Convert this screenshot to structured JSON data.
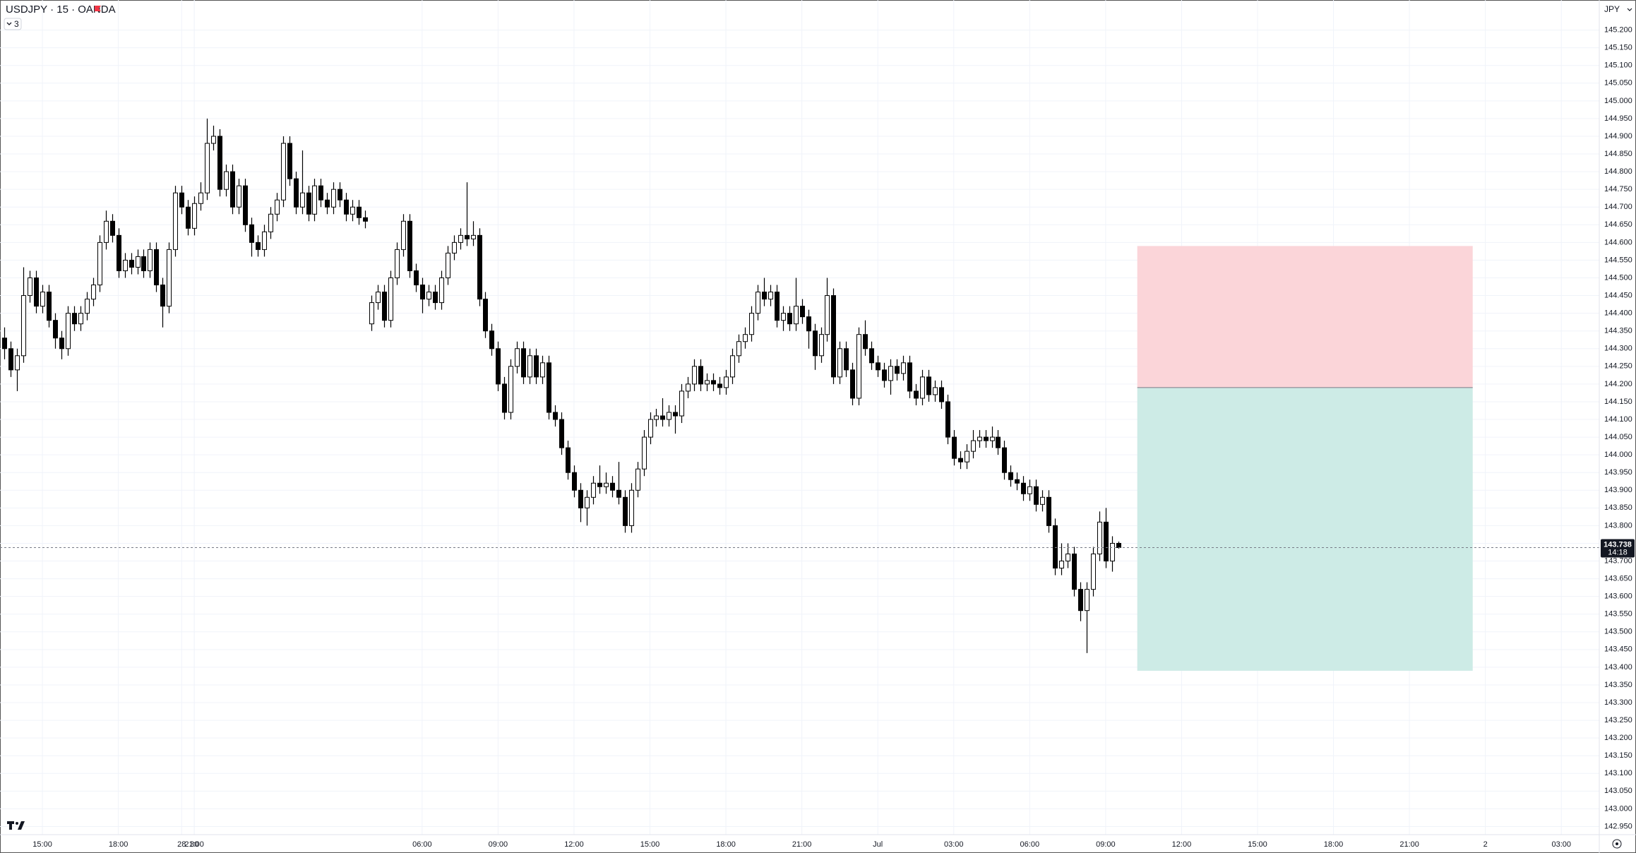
{
  "chart_data": {
    "type": "candlestick",
    "title": "USDJPY · 15 · OANDA",
    "currency": "JPY",
    "indicator_count": "3",
    "open": [
      144.33,
      144.3,
      144.24,
      144.28,
      144.45,
      144.5,
      144.42,
      144.46,
      144.38,
      144.33,
      144.3,
      144.4,
      144.37,
      144.4,
      144.44,
      144.48,
      144.6,
      144.66,
      144.62,
      144.52,
      144.55,
      144.53,
      144.56,
      144.52,
      144.58,
      144.48,
      144.42,
      144.58,
      144.74,
      144.7,
      144.64,
      144.71,
      144.74,
      144.88,
      144.9,
      144.75,
      144.8,
      144.7,
      144.76,
      144.65,
      144.6,
      144.58,
      144.63,
      144.68,
      144.72,
      144.88,
      144.78,
      144.7,
      144.74,
      144.68,
      144.76,
      144.72,
      144.7,
      144.75,
      144.72,
      144.68,
      144.7,
      144.67,
      144.37,
      144.43,
      144.46,
      144.38,
      144.5,
      144.58,
      144.66,
      144.52,
      144.48,
      144.44,
      144.46,
      144.43,
      144.5,
      144.57,
      144.6,
      144.62,
      144.61,
      144.62,
      144.44,
      144.35,
      144.3,
      144.2,
      144.12,
      144.25,
      144.3,
      144.22,
      144.28,
      144.22,
      144.26,
      144.12,
      144.1,
      144.02,
      143.95,
      143.9,
      143.85,
      143.88,
      143.92,
      143.91,
      143.92,
      143.9,
      143.88,
      143.8,
      143.9,
      143.96,
      144.05,
      144.1,
      144.11,
      144.1,
      144.12,
      144.11,
      144.18,
      144.2,
      144.25,
      144.2,
      144.21,
      144.2,
      144.19,
      144.22,
      144.28,
      144.32,
      144.34,
      144.4,
      144.46,
      144.44,
      144.46,
      144.38,
      144.4,
      144.37,
      144.42,
      144.39,
      144.35,
      144.28,
      144.34,
      144.45,
      144.22,
      144.3,
      144.24,
      144.16,
      144.34,
      144.3,
      144.26,
      144.24,
      144.21,
      144.25,
      144.23,
      144.26,
      144.18,
      144.16,
      144.22,
      144.17,
      144.19,
      144.15,
      144.05,
      143.99,
      143.98,
      144.01,
      144.04,
      144.05,
      144.04,
      144.05,
      144.02,
      143.95,
      143.93,
      143.92,
      143.89,
      143.91,
      143.86,
      143.88,
      143.8,
      143.68,
      143.7,
      143.72,
      143.62,
      143.56,
      143.62,
      143.72,
      143.81,
      143.7,
      143.75
    ],
    "high": [
      144.36,
      144.32,
      144.3,
      144.53,
      144.52,
      144.52,
      144.48,
      144.48,
      144.4,
      144.35,
      144.42,
      144.42,
      144.42,
      144.46,
      144.5,
      144.62,
      144.69,
      144.68,
      144.64,
      144.57,
      144.57,
      144.58,
      144.58,
      144.6,
      144.6,
      144.5,
      144.6,
      144.76,
      144.76,
      144.72,
      144.73,
      144.77,
      144.95,
      144.93,
      144.92,
      144.82,
      144.82,
      144.78,
      144.78,
      144.67,
      144.62,
      144.65,
      144.7,
      144.74,
      144.9,
      144.9,
      144.8,
      144.86,
      144.76,
      144.78,
      144.78,
      144.74,
      144.77,
      144.77,
      144.74,
      144.72,
      144.72,
      144.69,
      144.45,
      144.48,
      144.48,
      144.52,
      144.6,
      144.68,
      144.68,
      144.54,
      144.5,
      144.48,
      144.48,
      144.52,
      144.59,
      144.62,
      144.64,
      144.77,
      144.66,
      144.64,
      144.46,
      144.37,
      144.32,
      144.22,
      144.27,
      144.32,
      144.32,
      144.3,
      144.3,
      144.28,
      144.28,
      144.14,
      144.12,
      144.04,
      143.97,
      143.92,
      143.9,
      143.94,
      143.97,
      143.95,
      143.94,
      143.98,
      143.9,
      143.92,
      143.98,
      144.07,
      144.12,
      144.13,
      144.16,
      144.14,
      144.14,
      144.2,
      144.22,
      144.27,
      144.27,
      144.23,
      144.23,
      144.22,
      144.24,
      144.3,
      144.34,
      144.36,
      144.42,
      144.48,
      144.5,
      144.48,
      144.48,
      144.42,
      144.42,
      144.5,
      144.44,
      144.41,
      144.37,
      144.36,
      144.5,
      144.47,
      144.32,
      144.32,
      144.26,
      144.36,
      144.38,
      144.32,
      144.28,
      144.26,
      144.27,
      144.27,
      144.28,
      144.28,
      144.2,
      144.24,
      144.24,
      144.21,
      144.21,
      144.17,
      144.07,
      144.01,
      144.03,
      144.07,
      144.07,
      144.07,
      144.08,
      144.07,
      144.04,
      143.97,
      143.95,
      143.94,
      143.93,
      143.93,
      143.9,
      143.9,
      143.82,
      143.75,
      143.75,
      143.74,
      143.64,
      143.64,
      143.74,
      143.84,
      143.85,
      143.77,
      143.755
    ],
    "low": [
      144.27,
      144.22,
      144.18,
      144.26,
      144.43,
      144.4,
      144.4,
      144.36,
      144.3,
      144.27,
      144.28,
      144.35,
      144.35,
      144.38,
      144.42,
      144.46,
      144.58,
      144.6,
      144.5,
      144.5,
      144.51,
      144.51,
      144.5,
      144.5,
      144.46,
      144.36,
      144.4,
      144.56,
      144.68,
      144.62,
      144.62,
      144.69,
      144.72,
      144.86,
      144.73,
      144.73,
      144.68,
      144.68,
      144.63,
      144.56,
      144.56,
      144.56,
      144.61,
      144.66,
      144.7,
      144.76,
      144.68,
      144.68,
      144.66,
      144.66,
      144.7,
      144.68,
      144.68,
      144.7,
      144.66,
      144.66,
      144.65,
      144.64,
      144.35,
      144.41,
      144.36,
      144.36,
      144.48,
      144.56,
      144.5,
      144.46,
      144.4,
      144.42,
      144.41,
      144.41,
      144.48,
      144.55,
      144.58,
      144.59,
      144.59,
      144.42,
      144.33,
      144.28,
      144.18,
      144.1,
      144.1,
      144.23,
      144.2,
      144.2,
      144.2,
      144.2,
      144.1,
      144.08,
      144.0,
      143.93,
      143.88,
      143.81,
      143.8,
      143.86,
      143.89,
      143.89,
      143.88,
      143.86,
      143.78,
      143.78,
      143.88,
      143.94,
      144.03,
      144.08,
      144.08,
      144.08,
      144.06,
      144.09,
      144.16,
      144.18,
      144.18,
      144.18,
      144.18,
      144.17,
      144.17,
      144.2,
      144.26,
      144.3,
      144.32,
      144.38,
      144.42,
      144.42,
      144.36,
      144.35,
      144.35,
      144.35,
      144.37,
      144.3,
      144.24,
      144.26,
      144.32,
      144.2,
      144.2,
      144.22,
      144.14,
      144.14,
      144.28,
      144.24,
      144.22,
      144.19,
      144.17,
      144.21,
      144.21,
      144.16,
      144.14,
      144.14,
      144.15,
      144.15,
      144.13,
      144.03,
      143.97,
      143.96,
      143.96,
      143.99,
      144.02,
      144.02,
      144.02,
      144.0,
      143.93,
      143.91,
      143.9,
      143.87,
      143.87,
      143.84,
      143.84,
      143.78,
      143.66,
      143.66,
      143.68,
      143.6,
      143.53,
      143.44,
      143.6,
      143.7,
      143.68,
      143.67,
      143.735
    ],
    "close": [
      144.3,
      144.24,
      144.28,
      144.45,
      144.5,
      144.42,
      144.46,
      144.38,
      144.33,
      144.3,
      144.4,
      144.37,
      144.4,
      144.44,
      144.48,
      144.6,
      144.66,
      144.62,
      144.52,
      144.55,
      144.53,
      144.56,
      144.52,
      144.58,
      144.48,
      144.42,
      144.58,
      144.74,
      144.7,
      144.64,
      144.71,
      144.74,
      144.88,
      144.9,
      144.75,
      144.8,
      144.7,
      144.76,
      144.65,
      144.6,
      144.58,
      144.63,
      144.68,
      144.72,
      144.88,
      144.78,
      144.7,
      144.74,
      144.68,
      144.76,
      144.72,
      144.7,
      144.75,
      144.72,
      144.68,
      144.7,
      144.67,
      144.66,
      144.43,
      144.46,
      144.38,
      144.5,
      144.58,
      144.66,
      144.52,
      144.48,
      144.44,
      144.46,
      144.43,
      144.5,
      144.57,
      144.6,
      144.62,
      144.61,
      144.62,
      144.44,
      144.35,
      144.3,
      144.2,
      144.12,
      144.25,
      144.3,
      144.22,
      144.28,
      144.22,
      144.26,
      144.12,
      144.1,
      144.02,
      143.95,
      143.9,
      143.85,
      143.88,
      143.92,
      143.91,
      143.92,
      143.9,
      143.88,
      143.8,
      143.9,
      143.96,
      144.05,
      144.1,
      144.11,
      144.1,
      144.12,
      144.11,
      144.18,
      144.2,
      144.25,
      144.2,
      144.21,
      144.2,
      144.19,
      144.22,
      144.28,
      144.32,
      144.34,
      144.4,
      144.46,
      144.44,
      144.46,
      144.38,
      144.4,
      144.37,
      144.42,
      144.39,
      144.35,
      144.28,
      144.34,
      144.45,
      144.22,
      144.3,
      144.24,
      144.16,
      144.34,
      144.3,
      144.26,
      144.24,
      144.21,
      144.25,
      144.23,
      144.26,
      144.18,
      144.16,
      144.22,
      144.17,
      144.19,
      144.15,
      144.05,
      143.99,
      143.98,
      144.01,
      144.04,
      144.05,
      144.04,
      144.05,
      144.02,
      143.95,
      143.93,
      143.92,
      143.89,
      143.91,
      143.86,
      143.88,
      143.8,
      143.68,
      143.7,
      143.72,
      143.62,
      143.56,
      143.62,
      143.72,
      143.81,
      143.7,
      143.75,
      143.738
    ],
    "up_color": "#ffffff",
    "down_color": "#000000",
    "wick_color": "#000000",
    "last_price": 143.738,
    "countdown": "14:18",
    "position": {
      "start": 179,
      "end": 232,
      "stop": 144.59,
      "entry": 144.19,
      "target": 143.39,
      "stop_color": "#fbd5d9",
      "target_color": "#cdebe6"
    },
    "xlim": [
      -0.7,
      252
    ],
    "ylim": [
      142.927,
      145.285
    ],
    "grid": true,
    "xticks": [
      {
        "value": 6,
        "label": "15:00"
      },
      {
        "value": 18,
        "label": "18:00"
      },
      {
        "value": 30,
        "label": "21:00"
      },
      28,
      30,
      {
        "value": 66,
        "label": "06:00"
      },
      {
        "value": 78,
        "label": "09:00"
      },
      {
        "value": 90,
        "label": "12:00"
      },
      {
        "value": 102,
        "label": "15:00"
      },
      {
        "value": 114,
        "label": "18:00"
      },
      {
        "value": 126,
        "label": "21:00"
      },
      {
        "value": 138,
        "label": "Jul"
      },
      {
        "value": 150,
        "label": "03:00"
      },
      {
        "value": 162,
        "label": "06:00"
      },
      {
        "value": 174,
        "label": "09:00"
      },
      {
        "value": 186,
        "label": "12:00"
      },
      {
        "value": 198,
        "label": "15:00"
      },
      {
        "value": 210,
        "label": "18:00"
      },
      {
        "value": 222,
        "label": "21:00"
      },
      {
        "value": 234,
        "label": "2"
      },
      {
        "value": 246,
        "label": "03:00"
      }
    ],
    "yticks": [
      {
        "value": 145.2,
        "label": "145.200"
      },
      {
        "value": 145.15,
        "label": "145.150"
      },
      {
        "value": 145.1,
        "label": "145.100"
      },
      {
        "value": 145.05,
        "label": "145.050"
      },
      {
        "value": 145,
        "label": "145.000"
      },
      {
        "value": 144.95,
        "label": "144.950"
      },
      {
        "value": 144.9,
        "label": "144.900"
      },
      {
        "value": 144.85,
        "label": "144.850"
      },
      {
        "value": 144.8,
        "label": "144.800"
      },
      {
        "value": 144.75,
        "label": "144.750"
      },
      {
        "value": 144.7,
        "label": "144.700"
      },
      {
        "value": 144.65,
        "label": "144.650"
      },
      {
        "value": 144.6,
        "label": "144.600"
      },
      {
        "value": 144.55,
        "label": "144.550"
      },
      {
        "value": 144.5,
        "label": "144.500"
      },
      {
        "value": 144.45,
        "label": "144.450"
      },
      {
        "value": 144.4,
        "label": "144.400"
      },
      {
        "value": 144.35,
        "label": "144.350"
      },
      {
        "value": 144.3,
        "label": "144.300"
      },
      {
        "value": 144.25,
        "label": "144.250"
      },
      {
        "value": 144.2,
        "label": "144.200"
      },
      {
        "value": 144.15,
        "label": "144.150"
      },
      {
        "value": 144.1,
        "label": "144.100"
      },
      {
        "value": 144.05,
        "label": "144.050"
      },
      {
        "value": 144,
        "label": "144.000"
      },
      {
        "value": 143.95,
        "label": "143.950"
      },
      {
        "value": 143.9,
        "label": "143.900"
      },
      {
        "value": 143.85,
        "label": "143.850"
      },
      {
        "value": 143.8,
        "label": "143.800"
      },
      {
        "value": 143.75,
        "label": "143.750"
      },
      {
        "value": 143.7,
        "label": "143.700"
      },
      {
        "value": 143.65,
        "label": "143.650"
      },
      {
        "value": 143.6,
        "label": "143.600"
      },
      {
        "value": 143.55,
        "label": "143.550"
      },
      {
        "value": 143.5,
        "label": "143.500"
      },
      {
        "value": 143.45,
        "label": "143.450"
      },
      {
        "value": 143.4,
        "label": "143.400"
      },
      {
        "value": 143.35,
        "label": "143.350"
      },
      {
        "value": 143.3,
        "label": "143.300"
      },
      {
        "value": 143.25,
        "label": "143.250"
      },
      {
        "value": 143.2,
        "label": "143.200"
      },
      {
        "value": 143.15,
        "label": "143.150"
      },
      {
        "value": 143.1,
        "label": "143.100"
      },
      {
        "value": 143.05,
        "label": "143.050"
      },
      {
        "value": 143,
        "label": "143.000"
      },
      {
        "value": 142.95,
        "label": "142.950"
      }
    ]
  }
}
